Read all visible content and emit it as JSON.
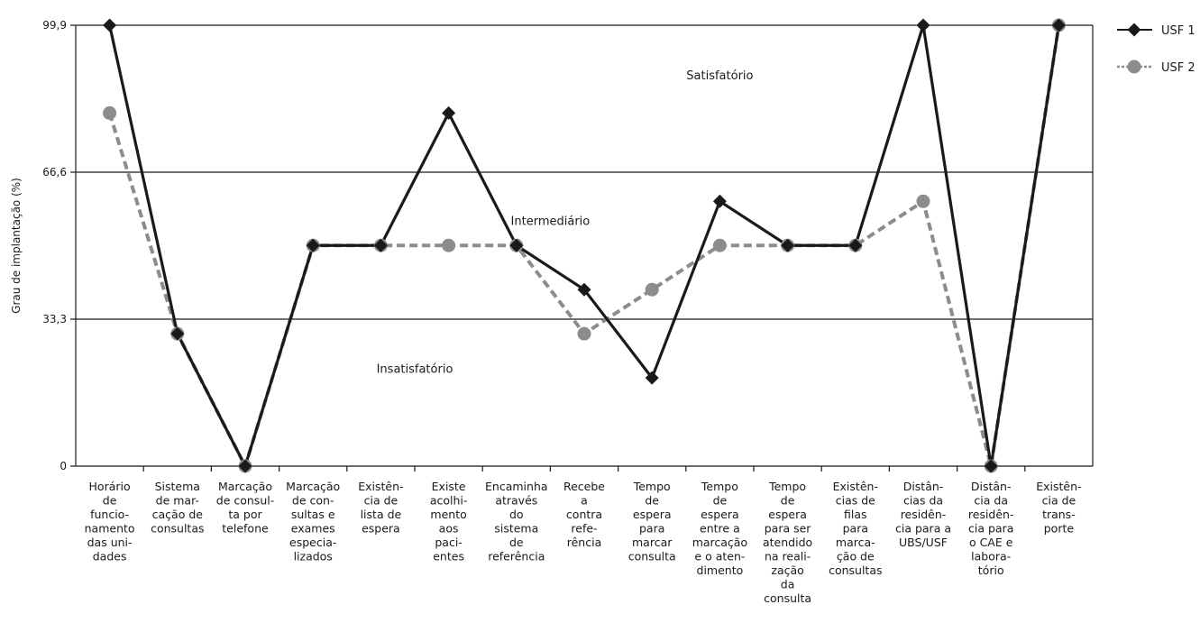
{
  "chart_data": {
    "type": "line",
    "title": "",
    "xlabel": "",
    "ylabel": "Grau de implantação (%)",
    "ylim": [
      0,
      99.9
    ],
    "yticks": [
      {
        "value": 0,
        "label": "0"
      },
      {
        "value": 33.3,
        "label": "33,3"
      },
      {
        "value": 66.6,
        "label": "66,6"
      },
      {
        "value": 99.9,
        "label": "99,9"
      }
    ],
    "zones": [
      {
        "label": "Satisfatório",
        "value": 88.5,
        "x_index": 9
      },
      {
        "label": "Intermediário",
        "value": 55.5,
        "x_index": 6.5
      },
      {
        "label": "Insatisfatório",
        "value": 22,
        "x_index": 4.5
      }
    ],
    "categories": [
      [
        "Horário",
        "de",
        "funcio-",
        "namento",
        "das uni-",
        "dades"
      ],
      [
        "Sistema",
        "de  mar-",
        "cação de",
        "consultas"
      ],
      [
        "Marcação",
        "de consul-",
        "ta por",
        "telefone"
      ],
      [
        "Marcação",
        "de con-",
        "sultas e",
        "exames",
        "especia-",
        "lizados"
      ],
      [
        "Existên-",
        "cia de",
        "lista de",
        "espera"
      ],
      [
        "Existe",
        "acolhi-",
        "mento",
        "aos",
        "paci-",
        "entes"
      ],
      [
        "Encaminha",
        "através",
        "do",
        "sistema",
        "de",
        "referência"
      ],
      [
        "Recebe",
        "a",
        "contra",
        "refe-",
        "rência"
      ],
      [
        "Tempo",
        "de",
        "espera",
        "para",
        "marcar",
        "consulta"
      ],
      [
        "Tempo",
        "de",
        "espera",
        "entre a",
        "marcação",
        "e o aten-",
        "dimento"
      ],
      [
        "Tempo",
        "de",
        "espera",
        "para ser",
        "atendido",
        "na reali-",
        "zação",
        "da",
        "consulta"
      ],
      [
        "Existên-",
        "cias de",
        "filas",
        "para",
        "marca-",
        "ção de",
        "consultas"
      ],
      [
        "Distân-",
        "cias da",
        "residên-",
        "cia para a",
        "UBS/USF"
      ],
      [
        "Distân-",
        "cia da",
        "residên-",
        "cia para",
        "o CAE e",
        "labora-",
        "tório"
      ],
      [
        "Existên-",
        "cia de",
        "trans-",
        "porte"
      ]
    ],
    "series": [
      {
        "name": "USF 1",
        "color": "#1a1a1a",
        "marker": "diamond",
        "style": "solid",
        "values": [
          99.9,
          30,
          0,
          50,
          50,
          80,
          50,
          40,
          20,
          60,
          50,
          50,
          99.9,
          0,
          99.9
        ]
      },
      {
        "name": "USF 2",
        "color": "#8c8c8c",
        "marker": "circle",
        "style": "dashed",
        "values": [
          80,
          30,
          0,
          50,
          50,
          50,
          50,
          30,
          40,
          50,
          50,
          50,
          60,
          0,
          99.9
        ]
      }
    ],
    "grid": false,
    "legend": "top-right"
  }
}
